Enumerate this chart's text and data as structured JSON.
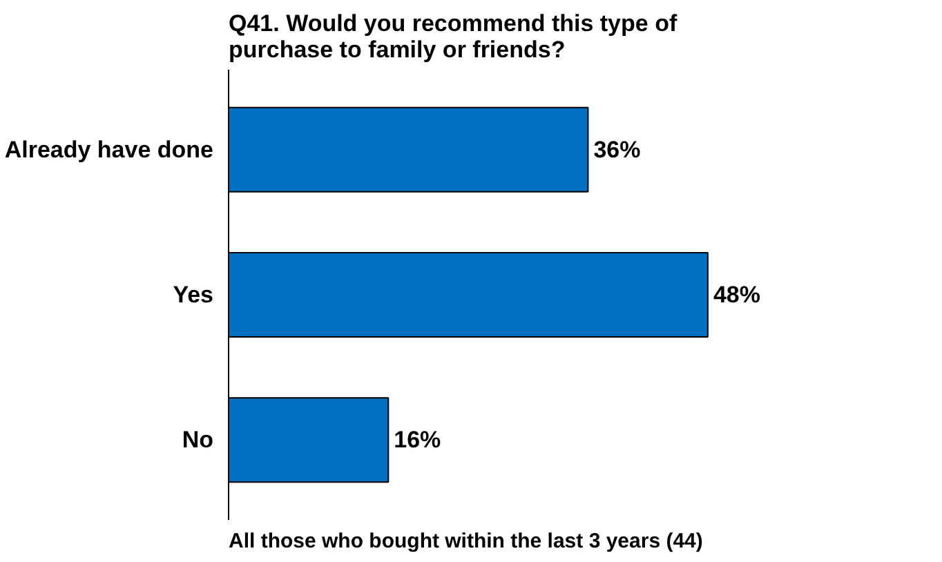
{
  "chart_data": {
    "type": "bar",
    "orientation": "horizontal",
    "title": "Q41. Would you recommend this type of purchase to family or friends?",
    "categories": [
      "Already have done",
      "Yes",
      "No"
    ],
    "values": [
      36,
      48,
      16
    ],
    "value_labels": [
      "36%",
      "48%",
      "16%"
    ],
    "color": "#0070c0",
    "annotations": [
      "All those who bought within the last 3 years (44)"
    ]
  }
}
